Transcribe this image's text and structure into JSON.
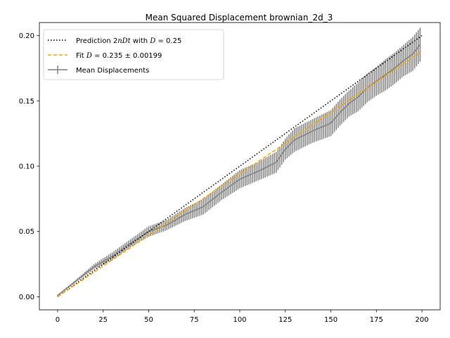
{
  "chart_data": {
    "type": "line",
    "title": "Mean Squared Displacement brownian_2d_3",
    "xlabel": "",
    "ylabel": "",
    "xlim": [
      -10,
      210
    ],
    "ylim": [
      -0.01,
      0.21
    ],
    "xticks": [
      0,
      25,
      50,
      75,
      100,
      125,
      150,
      175,
      200
    ],
    "yticks": [
      0.0,
      0.05,
      0.1,
      0.15,
      0.2
    ],
    "xtick_labels": [
      "0",
      "25",
      "50",
      "75",
      "100",
      "125",
      "150",
      "175",
      "200"
    ],
    "ytick_labels": [
      "0.00",
      "0.05",
      "0.10",
      "0.15",
      "0.20"
    ],
    "grid": false,
    "legend_position": "upper-left",
    "series": [
      {
        "name": "Prediction 2nDt with D = 0.25",
        "style": "dotted",
        "color": "#000000",
        "x": [
          0,
          200
        ],
        "y": [
          0.0,
          0.2
        ]
      },
      {
        "name": "Fit D = 0.235 ± 0.00199",
        "style": "dashed",
        "color": "#ffa500",
        "x": [
          0,
          200
        ],
        "y": [
          0.0,
          0.188
        ]
      },
      {
        "name": "Mean Displacements",
        "style": "errorbar",
        "color": "#808080",
        "x": [
          0,
          10,
          20,
          30,
          40,
          50,
          60,
          70,
          80,
          90,
          100,
          110,
          120,
          125,
          130,
          140,
          150,
          155,
          160,
          165,
          170,
          175,
          180,
          185,
          190,
          195,
          199
        ],
        "y": [
          0.001,
          0.012,
          0.023,
          0.031,
          0.041,
          0.05,
          0.055,
          0.063,
          0.069,
          0.08,
          0.09,
          0.096,
          0.103,
          0.113,
          0.12,
          0.127,
          0.133,
          0.141,
          0.148,
          0.153,
          0.16,
          0.165,
          0.17,
          0.175,
          0.181,
          0.186,
          0.193
        ],
        "yerr": [
          0.0005,
          0.001,
          0.002,
          0.003,
          0.003,
          0.004,
          0.004,
          0.005,
          0.006,
          0.006,
          0.007,
          0.007,
          0.008,
          0.008,
          0.009,
          0.009,
          0.01,
          0.01,
          0.01,
          0.011,
          0.011,
          0.011,
          0.012,
          0.012,
          0.012,
          0.013,
          0.013
        ]
      }
    ],
    "legend": {
      "prediction_prefix": "Prediction 2",
      "prediction_var": "nDt",
      "prediction_mid": " with ",
      "prediction_d": "D",
      "prediction_value": " = 0.25",
      "fit_prefix": "Fit ",
      "fit_d": "D",
      "fit_value": " = 0.235 ± 0.00199",
      "points_label": "Mean Displacements"
    }
  }
}
